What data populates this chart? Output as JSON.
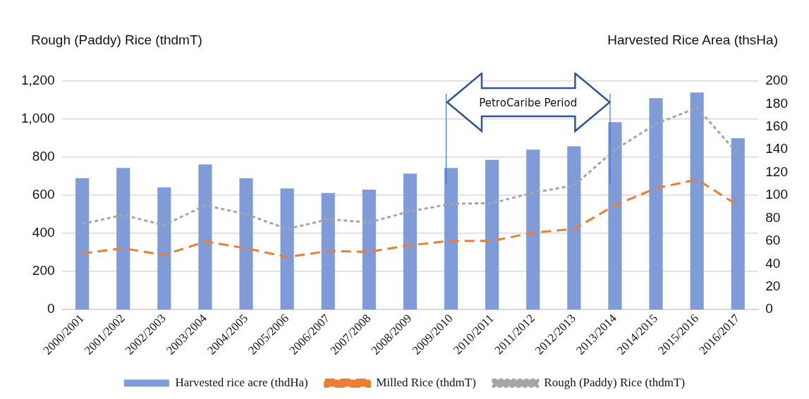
{
  "chart_data": {
    "type": "bar",
    "ylabel": "Rough (Paddy) Rice (thdmT)",
    "y2label": "Harvested Rice Area (thsHa)",
    "categories": [
      "2000/2001",
      "2001/2002",
      "2002/2003",
      "2003/2004",
      "2004/2005",
      "2005/2006",
      "2006/2007",
      "2007/2008",
      "2008/2009",
      "2009/2010",
      "2010/2011",
      "2011/2012",
      "2012/2013",
      "2013/2014",
      "2014/2015",
      "2015/2016",
      "2016/2017"
    ],
    "series": [
      {
        "name": "Harvested rice acre (thdHa)",
        "axis": "y2",
        "color": "#7f9bd8",
        "values": [
          115,
          124,
          107,
          127,
          115,
          106,
          102,
          105,
          119,
          124,
          131,
          140,
          143,
          164,
          185,
          190,
          150
        ]
      },
      {
        "name": "Milled Rice (thdmT)",
        "type": "line",
        "axis": "y",
        "color": "#ed7d31",
        "line_style": "dashed",
        "values": [
          295,
          322,
          287,
          357,
          322,
          276,
          307,
          303,
          338,
          361,
          361,
          404,
          423,
          548,
          637,
          683,
          548
        ]
      },
      {
        "name": "Rough (Paddy) Rice (thdmT)",
        "type": "line",
        "axis": "y",
        "color": "#a5a5a5",
        "line_style": "dotted",
        "values": [
          450,
          497,
          443,
          548,
          501,
          423,
          474,
          458,
          516,
          555,
          559,
          614,
          652,
          839,
          975,
          1060,
          819
        ]
      }
    ],
    "ylim": [
      0,
      1200
    ],
    "yticks": [
      {
        "value": 0,
        "label": "0"
      },
      {
        "value": 200,
        "label": "200"
      },
      {
        "value": 400,
        "label": "400"
      },
      {
        "value": 600,
        "label": "600"
      },
      {
        "value": 800,
        "label": "800"
      },
      {
        "value": 1000,
        "label": "1,000"
      },
      {
        "value": 1200,
        "label": "1,200"
      }
    ],
    "y2lim": [
      0,
      200
    ],
    "y2ticks": [
      0,
      20,
      40,
      60,
      80,
      100,
      120,
      140,
      160,
      180,
      200
    ],
    "ref_lines": [
      {
        "axis": "x",
        "value": "2009/2010",
        "color": "#4472c4"
      },
      {
        "axis": "x",
        "value": "2013/2014",
        "color": "#4472c4"
      }
    ],
    "annotations": [
      "PetroCaribe Period"
    ],
    "grid": "y",
    "legend": "bottom",
    "marker": "none"
  }
}
